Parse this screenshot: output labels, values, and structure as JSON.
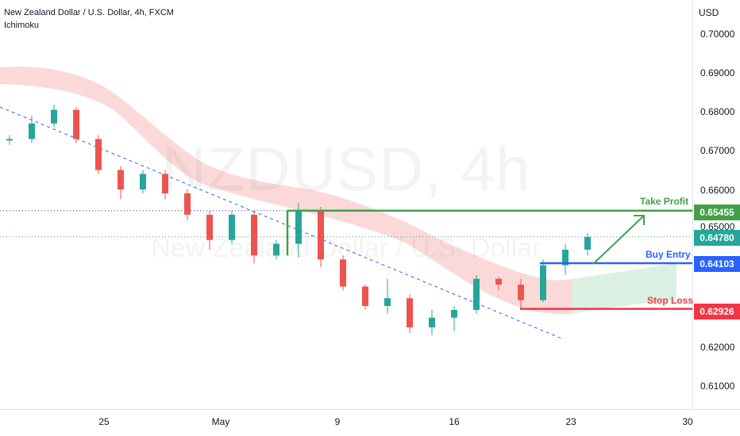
{
  "header": {
    "title": "New Zealand Dollar / U.S. Dollar, 4h, FXCM",
    "indicator": "Ichimoku"
  },
  "watermark": {
    "ticker": "NZDUSD, 4h",
    "name": "New Zealand Dollar / U.S. Dollar"
  },
  "price_axis": {
    "currency": "USD",
    "ticks": [
      "0.70000",
      "0.69000",
      "0.68000",
      "0.67000",
      "0.66000",
      "0.65000",
      "0.62000",
      "0.61000"
    ]
  },
  "time_axis": {
    "ticks": [
      "25",
      "May",
      "9",
      "16",
      "23",
      "30"
    ]
  },
  "levels": {
    "take_profit": {
      "label": "Take Profit",
      "price": "0.65455",
      "color": "#43a047"
    },
    "current": {
      "price": "0.64780",
      "color": "#26a69a"
    },
    "buy_entry": {
      "label": "Buy Entry",
      "price": "0.64103",
      "color": "#2962ff"
    },
    "stop_loss": {
      "label": "Stop Loss",
      "price": "0.62926",
      "color": "#f23645"
    }
  },
  "colors": {
    "up": "#26a69a",
    "down": "#ef5350",
    "trendline": "#2962ff",
    "cloud_bear": "#fbd5d5",
    "cloud_bull": "#d7f0e1",
    "arrow": "#43a047"
  },
  "chart_data": {
    "type": "candlestick",
    "symbol": "NZDUSD",
    "timeframe": "4h",
    "ylim": [
      0.605,
      0.705
    ],
    "dates": [
      "Apr 18",
      "Apr 19",
      "Apr 20",
      "Apr 21",
      "Apr 22",
      "Apr 25",
      "Apr 26",
      "Apr 27",
      "Apr 28",
      "Apr 29",
      "May 2",
      "May 3",
      "May 4",
      "May 5",
      "May 6",
      "May 9",
      "May 10",
      "May 11",
      "May 12",
      "May 13",
      "May 16",
      "May 17",
      "May 18",
      "May 19",
      "May 20",
      "May 23",
      "May 24"
    ],
    "series": [
      {
        "values": [
          {
            "date": "Apr 18",
            "open": 0.6726,
            "high": 0.674,
            "low": 0.6715,
            "close": 0.673
          },
          {
            "date": "Apr 19",
            "open": 0.673,
            "high": 0.679,
            "low": 0.672,
            "close": 0.677
          },
          {
            "date": "Apr 20",
            "open": 0.677,
            "high": 0.6818,
            "low": 0.676,
            "close": 0.6805
          },
          {
            "date": "Apr 21",
            "open": 0.6805,
            "high": 0.6812,
            "low": 0.672,
            "close": 0.673
          },
          {
            "date": "Apr 22",
            "open": 0.673,
            "high": 0.674,
            "low": 0.664,
            "close": 0.665
          },
          {
            "date": "Apr 25",
            "open": 0.665,
            "high": 0.666,
            "low": 0.6575,
            "close": 0.66
          },
          {
            "date": "Apr 26",
            "open": 0.66,
            "high": 0.665,
            "low": 0.659,
            "close": 0.664
          },
          {
            "date": "Apr 27",
            "open": 0.664,
            "high": 0.665,
            "low": 0.6575,
            "close": 0.659
          },
          {
            "date": "Apr 28",
            "open": 0.659,
            "high": 0.66,
            "low": 0.652,
            "close": 0.6535
          },
          {
            "date": "Apr 29",
            "open": 0.6535,
            "high": 0.6545,
            "low": 0.6445,
            "close": 0.647
          },
          {
            "date": "May 2",
            "open": 0.647,
            "high": 0.6545,
            "low": 0.646,
            "close": 0.6535
          },
          {
            "date": "May 3",
            "open": 0.6535,
            "high": 0.6545,
            "low": 0.641,
            "close": 0.643
          },
          {
            "date": "May 4",
            "open": 0.643,
            "high": 0.647,
            "low": 0.642,
            "close": 0.646
          },
          {
            "date": "May 5",
            "open": 0.646,
            "high": 0.6565,
            "low": 0.6425,
            "close": 0.6545
          },
          {
            "date": "May 6",
            "open": 0.6545,
            "high": 0.6555,
            "low": 0.64,
            "close": 0.642
          },
          {
            "date": "May 9",
            "open": 0.642,
            "high": 0.643,
            "low": 0.634,
            "close": 0.635
          },
          {
            "date": "May 10",
            "open": 0.635,
            "high": 0.6355,
            "low": 0.629,
            "close": 0.63
          },
          {
            "date": "May 11",
            "open": 0.63,
            "high": 0.637,
            "low": 0.628,
            "close": 0.632
          },
          {
            "date": "May 12",
            "open": 0.632,
            "high": 0.633,
            "low": 0.623,
            "close": 0.6245
          },
          {
            "date": "May 13",
            "open": 0.6245,
            "high": 0.629,
            "low": 0.6225,
            "close": 0.627
          },
          {
            "date": "May 16",
            "open": 0.627,
            "high": 0.63,
            "low": 0.6235,
            "close": 0.629
          },
          {
            "date": "May 17",
            "open": 0.629,
            "high": 0.638,
            "low": 0.628,
            "close": 0.637
          },
          {
            "date": "May 18",
            "open": 0.637,
            "high": 0.6375,
            "low": 0.634,
            "close": 0.6355
          },
          {
            "date": "May 19",
            "open": 0.6355,
            "high": 0.637,
            "low": 0.629,
            "close": 0.6315
          },
          {
            "date": "May 20",
            "open": 0.6315,
            "high": 0.642,
            "low": 0.631,
            "close": 0.6405
          },
          {
            "date": "May 23",
            "open": 0.6405,
            "high": 0.646,
            "low": 0.638,
            "close": 0.6445
          },
          {
            "date": "May 24",
            "open": 0.6445,
            "high": 0.6488,
            "low": 0.643,
            "close": 0.6478
          }
        ]
      }
    ]
  }
}
